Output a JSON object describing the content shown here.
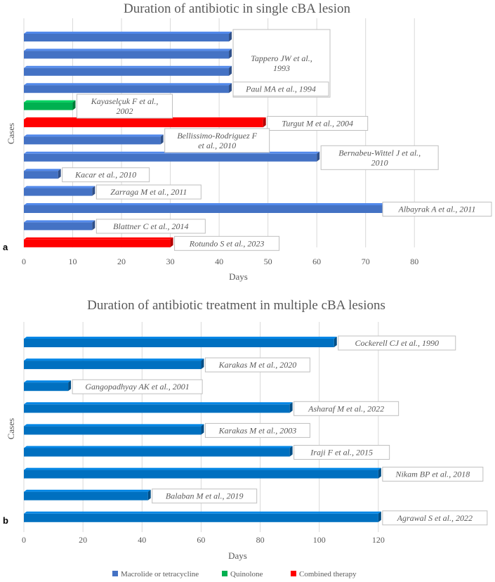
{
  "chart_data": [
    {
      "type": "bar",
      "orientation": "horizontal",
      "panel_label": "a",
      "title": "Duration of antibiotic in single cBA lesion",
      "xlabel": "Days",
      "ylabel": "Cases",
      "xlim": [
        0,
        85
      ],
      "xticks": [
        0,
        10,
        20,
        30,
        40,
        50,
        60,
        70,
        80
      ],
      "grid": "vertical",
      "bars": [
        {
          "value": 42,
          "series": "macrolide"
        },
        {
          "value": 42,
          "series": "macrolide"
        },
        {
          "value": 42,
          "series": "macrolide"
        },
        {
          "value": 42,
          "series": "macrolide"
        },
        {
          "value": 10,
          "series": "quinolone"
        },
        {
          "value": 49,
          "series": "combined"
        },
        {
          "value": 28,
          "series": "macrolide"
        },
        {
          "value": 60,
          "series": "macrolide"
        },
        {
          "value": 7,
          "series": "macrolide"
        },
        {
          "value": 14,
          "series": "macrolide"
        },
        {
          "value": 75,
          "series": "macrolide"
        },
        {
          "value": 14,
          "series": "macrolide"
        },
        {
          "value": 30,
          "series": "combined"
        }
      ],
      "annotations": [
        {
          "lines": [
            "Tappero JW et al.,",
            "1993"
          ],
          "bars": [
            0,
            3
          ]
        },
        {
          "lines": [
            "Paul MA et al., 1994"
          ],
          "bars": [
            3,
            3
          ]
        },
        {
          "lines": [
            "Kayaselçuk F et al.,",
            "2002"
          ],
          "bars": [
            4,
            4
          ]
        },
        {
          "lines": [
            "Turgut M et al., 2004"
          ],
          "bars": [
            5,
            5
          ]
        },
        {
          "lines": [
            "Bellissimo-Rodriguez F",
            "et al., 2010"
          ],
          "bars": [
            6,
            6
          ]
        },
        {
          "lines": [
            "Bernabeu-Wittel J et al.,",
            "2010"
          ],
          "bars": [
            7,
            7
          ]
        },
        {
          "lines": [
            "Kacar et al., 2010"
          ],
          "bars": [
            8,
            8
          ]
        },
        {
          "lines": [
            "Zarraga M et al., 2011"
          ],
          "bars": [
            9,
            9
          ]
        },
        {
          "lines": [
            "Albayrak A et al., 2011"
          ],
          "bars": [
            10,
            10
          ]
        },
        {
          "lines": [
            "Blattner C et al., 2014"
          ],
          "bars": [
            11,
            11
          ]
        },
        {
          "lines": [
            "Rotundo S et al., 2023"
          ],
          "bars": [
            12,
            12
          ]
        }
      ]
    },
    {
      "type": "bar",
      "orientation": "horizontal",
      "panel_label": "b",
      "title": "Duration of antibiotic treatment in multiple cBA lesions",
      "xlabel": "Days",
      "ylabel": "Cases",
      "xlim": [
        0,
        140
      ],
      "xticks": [
        0,
        20,
        40,
        60,
        80,
        100,
        120
      ],
      "grid": "vertical",
      "bars": [
        {
          "value": 105,
          "series": "macrolide"
        },
        {
          "value": 60,
          "series": "macrolide"
        },
        {
          "value": 15,
          "series": "macrolide"
        },
        {
          "value": 90,
          "series": "macrolide"
        },
        {
          "value": 60,
          "series": "macrolide"
        },
        {
          "value": 90,
          "series": "macrolide"
        },
        {
          "value": 120,
          "series": "macrolide"
        },
        {
          "value": 42,
          "series": "macrolide"
        },
        {
          "value": 120,
          "series": "macrolide"
        }
      ],
      "annotations": [
        {
          "lines": [
            "Cockerell CJ et al., 1990"
          ],
          "bars": [
            0,
            0
          ]
        },
        {
          "lines": [
            "Karakas M et al., 2020"
          ],
          "bars": [
            1,
            1
          ]
        },
        {
          "lines": [
            "Gangopadhyay AK et al., 2001"
          ],
          "bars": [
            2,
            2
          ]
        },
        {
          "lines": [
            "Asharaf M et al., 2022"
          ],
          "bars": [
            3,
            3
          ]
        },
        {
          "lines": [
            "Karakas M et al., 2003"
          ],
          "bars": [
            4,
            4
          ]
        },
        {
          "lines": [
            "Iraji F et al., 2015"
          ],
          "bars": [
            5,
            5
          ]
        },
        {
          "lines": [
            "Nikam BP et al., 2018"
          ],
          "bars": [
            6,
            6
          ]
        },
        {
          "lines": [
            "Balaban M et al., 2019"
          ],
          "bars": [
            7,
            7
          ]
        },
        {
          "lines": [
            "Agrawal S et al., 2022"
          ],
          "bars": [
            8,
            8
          ]
        }
      ]
    }
  ],
  "legend": [
    {
      "key": "macrolide",
      "label": "Macrolide or tetracycline",
      "color": "#4472C4"
    },
    {
      "key": "quinolone",
      "label": "Quinolone",
      "color": "#00B050"
    },
    {
      "key": "combined",
      "label": "Combined therapy",
      "color": "#FF0000"
    }
  ],
  "colors": {
    "macrolide": "#4472C4",
    "macrolide_b": "#0070C0",
    "quinolone": "#00B050",
    "combined": "#FF0000",
    "grid": "#D9D9D9",
    "text": "#595959"
  }
}
